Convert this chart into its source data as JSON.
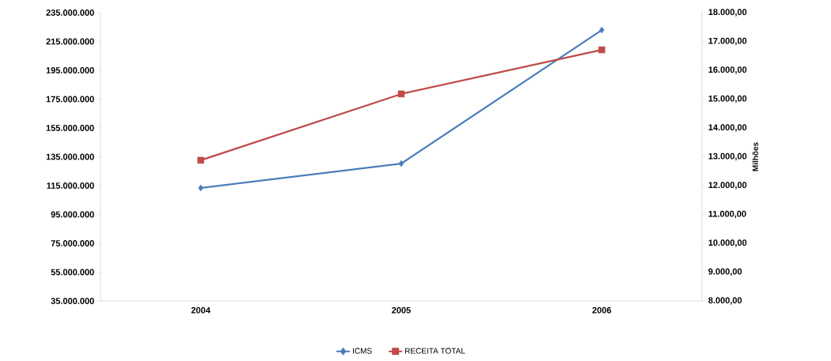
{
  "chart_data": {
    "type": "line",
    "categories": [
      "2004",
      "2005",
      "2006"
    ],
    "series": [
      {
        "name": "ICMS",
        "color": "#4a7ebb",
        "marker": "diamond",
        "values": [
          113400000,
          130300000,
          222900000
        ]
      },
      {
        "name": "RECEITA TOTAL",
        "color": "#be4b48",
        "marker": "square",
        "axis": "y2",
        "values": [
          12880,
          15180,
          16710
        ]
      }
    ],
    "ylim": [
      35000000,
      235000000
    ],
    "yticks": [
      {
        "value": 35000000,
        "label": "35.000.000"
      },
      {
        "value": 55000000,
        "label": "55.000.000"
      },
      {
        "value": 75000000,
        "label": "75.000.000"
      },
      {
        "value": 95000000,
        "label": "95.000.000"
      },
      {
        "value": 115000000,
        "label": "115.000.000"
      },
      {
        "value": 135000000,
        "label": "135.000.000"
      },
      {
        "value": 155000000,
        "label": "155.000.000"
      },
      {
        "value": 175000000,
        "label": "175.000.000"
      },
      {
        "value": 195000000,
        "label": "195.000.000"
      },
      {
        "value": 215000000,
        "label": "215.000.000"
      },
      {
        "value": 235000000,
        "label": "235.000.000"
      }
    ],
    "y2lim": [
      8000,
      18000
    ],
    "y2ticks": [
      {
        "value": 8000,
        "label": "8.000,00"
      },
      {
        "value": 9000,
        "label": "9.000,00"
      },
      {
        "value": 10000,
        "label": "10.000,00"
      },
      {
        "value": 11000,
        "label": "11.000,00"
      },
      {
        "value": 12000,
        "label": "12.000,00"
      },
      {
        "value": 13000,
        "label": "13.000,00"
      },
      {
        "value": 14000,
        "label": "14.000,00"
      },
      {
        "value": 15000,
        "label": "15.000,00"
      },
      {
        "value": 16000,
        "label": "16.000,00"
      },
      {
        "value": 17000,
        "label": "17.000,00"
      },
      {
        "value": 18000,
        "label": "18.000,00"
      }
    ],
    "y2label": "Milhões",
    "legend": "bottom"
  }
}
